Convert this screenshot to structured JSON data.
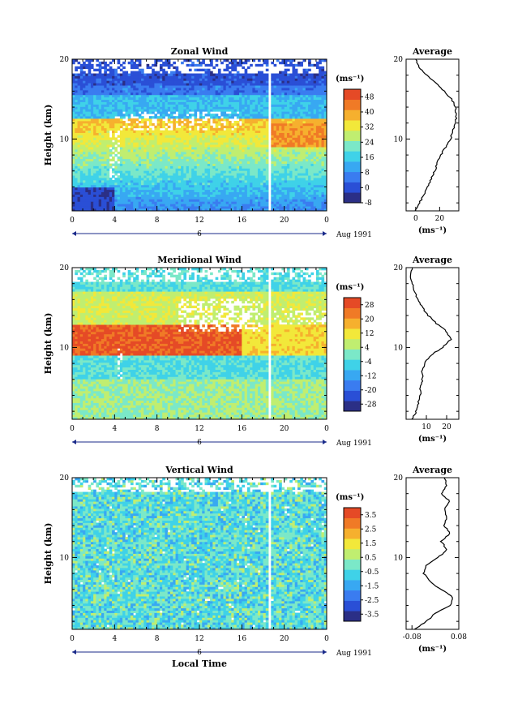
{
  "chart_data": [
    {
      "type": "heatmap",
      "title": "Zonal Wind",
      "ylabel": "Height (km)",
      "xticks": [
        "0",
        "4",
        "8",
        "12",
        "16",
        "20",
        "0"
      ],
      "yticks": [
        "20",
        "10"
      ],
      "date_marker": "6",
      "date_label": "Aug 1991",
      "xlim": [
        0,
        24
      ],
      "ylim": [
        1,
        20
      ],
      "colorbar": {
        "unit": "(ms⁻¹)",
        "labels": [
          "48",
          "40",
          "32",
          "24",
          "16",
          "8",
          "0",
          "-8"
        ],
        "range": [
          -8,
          52
        ]
      },
      "profile": {
        "title": "Average",
        "xlabel": "(ms⁻¹)",
        "xticks": [
          "0",
          "20"
        ],
        "yticks": [
          "20",
          "10"
        ],
        "xlim": [
          -8,
          36
        ],
        "heights": [
          1,
          2,
          3,
          4,
          5,
          6,
          7,
          8,
          9,
          10,
          11,
          12,
          13,
          14,
          15,
          16,
          17,
          18,
          19,
          20
        ],
        "values": [
          0,
          3,
          7,
          10,
          13,
          16,
          18,
          21,
          25,
          29,
          31,
          33,
          34,
          33,
          30,
          24,
          17,
          9,
          3,
          0
        ]
      }
    },
    {
      "type": "heatmap",
      "title": "Meridional Wind",
      "ylabel": "Height (km)",
      "xticks": [
        "0",
        "4",
        "8",
        "12",
        "16",
        "20",
        "0"
      ],
      "yticks": [
        "20",
        "10"
      ],
      "date_marker": "6",
      "date_label": "Aug 1991",
      "xlim": [
        0,
        24
      ],
      "ylim": [
        1,
        20
      ],
      "colorbar": {
        "unit": "(ms⁻¹)",
        "labels": [
          "28",
          "20",
          "12",
          "4",
          "-4",
          "-12",
          "-20",
          "-28"
        ],
        "range": [
          -32,
          32
        ]
      },
      "profile": {
        "title": "Average",
        "xlabel": "(ms⁻¹)",
        "xticks": [
          "10",
          "20"
        ],
        "yticks": [
          "20",
          "10"
        ],
        "xlim": [
          0,
          26
        ],
        "heights": [
          1,
          2,
          3,
          4,
          5,
          6,
          7,
          8,
          9,
          10,
          11,
          12,
          13,
          14,
          15,
          16,
          17,
          18,
          19,
          20
        ],
        "values": [
          3,
          5,
          6,
          7,
          7,
          8,
          8,
          9,
          12,
          18,
          22,
          20,
          15,
          11,
          8,
          6,
          4,
          3,
          2,
          3
        ]
      }
    },
    {
      "type": "heatmap",
      "title": "Vertical Wind",
      "ylabel": "Height (km)",
      "xlabel": "Local Time",
      "xticks": [
        "0",
        "4",
        "8",
        "12",
        "16",
        "20",
        "0"
      ],
      "yticks": [
        "20",
        "10"
      ],
      "date_marker": "6",
      "date_label": "Aug 1991",
      "xlim": [
        0,
        24
      ],
      "ylim": [
        1,
        20
      ],
      "colorbar": {
        "unit": "(ms⁻¹)",
        "labels": [
          "3.5",
          "2.5",
          "1.5",
          "0.5",
          "-0.5",
          "-1.5",
          "-2.5",
          "-3.5"
        ],
        "range": [
          -4,
          4
        ]
      },
      "profile": {
        "title": "Average",
        "xlabel": "(ms⁻¹)",
        "xticks": [
          "-0.08",
          "0.08"
        ],
        "yticks": [
          "20",
          "10"
        ],
        "xlim": [
          -0.1,
          0.08
        ],
        "heights": [
          1,
          2,
          3,
          4,
          5,
          6,
          7,
          8,
          9,
          10,
          11,
          12,
          13,
          14,
          15,
          16,
          17,
          18,
          19,
          20
        ],
        "values": [
          -0.07,
          -0.03,
          0.0,
          0.05,
          0.06,
          0.02,
          -0.02,
          -0.04,
          -0.03,
          0.01,
          0.04,
          0.02,
          0.05,
          0.03,
          0.04,
          0.03,
          0.05,
          0.02,
          0.04,
          0.03
        ]
      }
    }
  ],
  "colors": {
    "ramp": [
      "#2b2f86",
      "#2a4fd6",
      "#3a7cf0",
      "#38a8f2",
      "#3fd2e8",
      "#7be8c8",
      "#c0ee70",
      "#f2e83a",
      "#f6b02e",
      "#f07a26",
      "#e54a26"
    ]
  }
}
